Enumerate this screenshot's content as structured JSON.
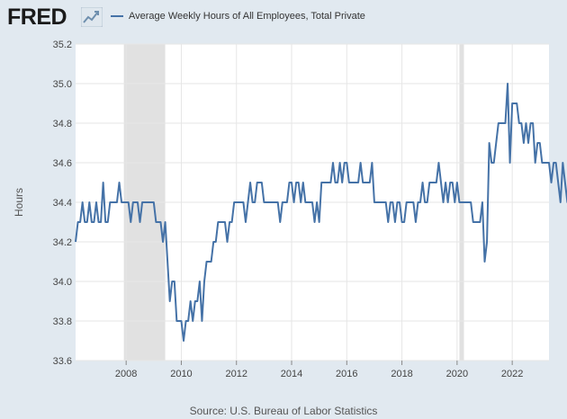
{
  "branding": {
    "logo_text": "FRED",
    "logo_icon": "chart-trend-icon",
    "line_color": "#4572a7",
    "background_color": "#e1e9f0",
    "recession_color": "#e1e1e1"
  },
  "source": "Source: U.S. Bureau of Labor Statistics",
  "chart_data": {
    "type": "line",
    "title": "",
    "xlabel": "",
    "ylabel": "Hours",
    "xlim": [
      "2006-03-01",
      "2023-05-01"
    ],
    "ylim": [
      33.6,
      35.2
    ],
    "grid": true,
    "legend_position": "top-left",
    "xticks": [
      2008,
      2010,
      2012,
      2014,
      2016,
      2018,
      2020,
      2022
    ],
    "yticks": [
      33.6,
      33.8,
      34.0,
      34.2,
      34.4,
      34.6,
      34.8,
      35.0,
      35.2
    ],
    "recessions": [
      [
        "2007-12-01",
        "2009-06-01"
      ],
      [
        "2020-02-01",
        "2020-04-01"
      ]
    ],
    "series": [
      {
        "name": "Average Weekly Hours of All Employees, Total Private",
        "start": "2006-03",
        "frequency": "monthly",
        "values": [
          34.2,
          34.3,
          34.3,
          34.4,
          34.3,
          34.3,
          34.4,
          34.3,
          34.3,
          34.4,
          34.3,
          34.3,
          34.5,
          34.3,
          34.3,
          34.4,
          34.4,
          34.4,
          34.4,
          34.5,
          34.4,
          34.4,
          34.4,
          34.4,
          34.3,
          34.4,
          34.4,
          34.4,
          34.3,
          34.4,
          34.4,
          34.4,
          34.4,
          34.4,
          34.4,
          34.3,
          34.3,
          34.3,
          34.2,
          34.3,
          34.1,
          33.9,
          34.0,
          34.0,
          33.8,
          33.8,
          33.8,
          33.7,
          33.8,
          33.8,
          33.9,
          33.8,
          33.9,
          33.9,
          34.0,
          33.8,
          34.0,
          34.1,
          34.1,
          34.1,
          34.2,
          34.2,
          34.3,
          34.3,
          34.3,
          34.3,
          34.2,
          34.3,
          34.3,
          34.4,
          34.4,
          34.4,
          34.4,
          34.4,
          34.3,
          34.4,
          34.5,
          34.4,
          34.4,
          34.5,
          34.5,
          34.5,
          34.4,
          34.4,
          34.4,
          34.4,
          34.4,
          34.4,
          34.4,
          34.3,
          34.4,
          34.4,
          34.4,
          34.5,
          34.5,
          34.4,
          34.5,
          34.5,
          34.4,
          34.5,
          34.4,
          34.4,
          34.4,
          34.4,
          34.3,
          34.4,
          34.3,
          34.5,
          34.5,
          34.5,
          34.5,
          34.5,
          34.6,
          34.5,
          34.5,
          34.6,
          34.5,
          34.6,
          34.6,
          34.5,
          34.5,
          34.5,
          34.5,
          34.5,
          34.6,
          34.5,
          34.5,
          34.5,
          34.5,
          34.6,
          34.4,
          34.4,
          34.4,
          34.4,
          34.4,
          34.4,
          34.3,
          34.4,
          34.4,
          34.3,
          34.4,
          34.4,
          34.3,
          34.3,
          34.4,
          34.4,
          34.4,
          34.4,
          34.3,
          34.4,
          34.4,
          34.5,
          34.4,
          34.4,
          34.5,
          34.5,
          34.5,
          34.5,
          34.6,
          34.5,
          34.4,
          34.5,
          34.4,
          34.5,
          34.5,
          34.4,
          34.5,
          34.4,
          34.4,
          34.4,
          34.4,
          34.4,
          34.4,
          34.3,
          34.3,
          34.3,
          34.3,
          34.4,
          34.1,
          34.2,
          34.7,
          34.6,
          34.6,
          34.7,
          34.8,
          34.8,
          34.8,
          34.8,
          35.0,
          34.6,
          34.9,
          34.9,
          34.9,
          34.8,
          34.8,
          34.7,
          34.8,
          34.7,
          34.8,
          34.8,
          34.6,
          34.7,
          34.7,
          34.6,
          34.6,
          34.6,
          34.6,
          34.5,
          34.6,
          34.6,
          34.5,
          34.4,
          34.6,
          34.5,
          34.4,
          34.4,
          34.3
        ]
      }
    ]
  }
}
